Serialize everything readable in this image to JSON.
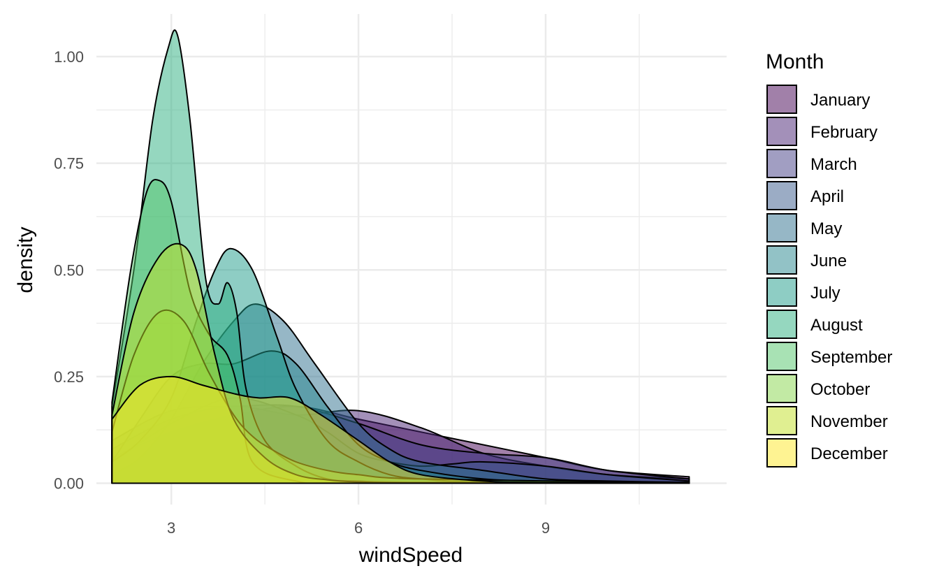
{
  "chart_data": {
    "type": "area",
    "xlabel": "windSpeed",
    "ylabel": "density",
    "xlim": [
      1.8,
      11.9
    ],
    "ylim": [
      -0.05,
      1.1
    ],
    "x_ticks": [
      3,
      6,
      9
    ],
    "x_tick_labels": [
      "3",
      "6",
      "9"
    ],
    "y_ticks": [
      0,
      0.25,
      0.5,
      0.75,
      1.0
    ],
    "y_tick_labels": [
      "0.00",
      "0.25",
      "0.50",
      "0.75",
      "1.00"
    ],
    "grid": true,
    "legend_position": "right",
    "legend_title": "Month",
    "fill_opacity": 0.5,
    "series": [
      {
        "name": "January",
        "color": "#440154",
        "x": [
          2.05,
          3,
          4,
          5,
          6,
          7,
          8,
          9,
          10,
          11.3
        ],
        "y": [
          0.06,
          0.12,
          0.16,
          0.18,
          0.15,
          0.12,
          0.09,
          0.06,
          0.03,
          0.015
        ]
      },
      {
        "name": "February",
        "color": "#482173",
        "x": [
          2.05,
          3,
          4,
          5,
          6,
          7,
          8,
          9,
          10,
          11.3
        ],
        "y": [
          0.08,
          0.15,
          0.18,
          0.16,
          0.17,
          0.13,
          0.07,
          0.04,
          0.02,
          0.01
        ]
      },
      {
        "name": "March",
        "color": "#433E85",
        "x": [
          2.05,
          3,
          4,
          5,
          6,
          7,
          8,
          9,
          10,
          11.3
        ],
        "y": [
          0.1,
          0.17,
          0.18,
          0.18,
          0.14,
          0.09,
          0.07,
          0.06,
          0.03,
          0.01
        ]
      },
      {
        "name": "April",
        "color": "#38598C",
        "x": [
          2.05,
          3,
          4,
          5,
          5.5,
          6,
          6.5,
          7,
          7.5,
          8,
          9,
          10,
          11.3
        ],
        "y": [
          0.05,
          0.14,
          0.2,
          0.16,
          0.12,
          0.07,
          0.05,
          0.04,
          0.045,
          0.05,
          0.04,
          0.02,
          0.005
        ]
      },
      {
        "name": "May",
        "color": "#2D708E",
        "x": [
          2.05,
          2.5,
          3,
          3.5,
          4,
          4.35,
          4.8,
          5.3,
          6,
          6.5,
          7,
          8,
          9,
          10,
          11.3
        ],
        "y": [
          0.02,
          0.06,
          0.15,
          0.28,
          0.38,
          0.42,
          0.38,
          0.28,
          0.14,
          0.08,
          0.05,
          0.03,
          0.01,
          0.005,
          0.002
        ]
      },
      {
        "name": "June",
        "color": "#25858E",
        "x": [
          2.05,
          2.5,
          3,
          3.5,
          4,
          4.6,
          5,
          5.5,
          6,
          6.5,
          7,
          8,
          9,
          11.3
        ],
        "y": [
          0.05,
          0.15,
          0.25,
          0.28,
          0.28,
          0.31,
          0.28,
          0.18,
          0.09,
          0.05,
          0.03,
          0.01,
          0.005,
          0.001
        ]
      },
      {
        "name": "July",
        "color": "#1E9B8A",
        "x": [
          2.05,
          2.5,
          3,
          3.4,
          3.7,
          3.95,
          4.3,
          4.7,
          5,
          5.5,
          6,
          6.5,
          7,
          8,
          11.3
        ],
        "y": [
          0.05,
          0.1,
          0.2,
          0.38,
          0.5,
          0.55,
          0.5,
          0.34,
          0.22,
          0.1,
          0.05,
          0.02,
          0.01,
          0.003,
          0.001
        ]
      },
      {
        "name": "August",
        "color": "#2BB07F",
        "x": [
          2.05,
          2.4,
          2.7,
          2.95,
          3.1,
          3.3,
          3.55,
          3.75,
          3.9,
          4.05,
          4.2,
          4.5,
          5,
          5.5,
          6,
          7,
          11.3
        ],
        "y": [
          0.18,
          0.5,
          0.85,
          1.02,
          1.05,
          0.85,
          0.48,
          0.42,
          0.47,
          0.4,
          0.22,
          0.1,
          0.04,
          0.01,
          0.005,
          0.002,
          0.001
        ]
      },
      {
        "name": "September",
        "color": "#51C56A",
        "x": [
          2.05,
          2.35,
          2.6,
          2.8,
          3.0,
          3.3,
          3.6,
          3.9,
          4.1,
          4.3,
          5,
          6,
          11.3
        ],
        "y": [
          0.19,
          0.5,
          0.68,
          0.71,
          0.66,
          0.45,
          0.35,
          0.3,
          0.2,
          0.05,
          0.005,
          0.001,
          0.001
        ]
      },
      {
        "name": "October",
        "color": "#85D54A",
        "x": [
          2.05,
          2.4,
          2.8,
          3.2,
          3.6,
          4.0,
          4.3,
          4.6,
          5,
          5.5,
          6,
          7,
          11.3
        ],
        "y": [
          0.12,
          0.3,
          0.4,
          0.38,
          0.26,
          0.16,
          0.11,
          0.08,
          0.05,
          0.03,
          0.02,
          0.01,
          0.001
        ]
      },
      {
        "name": "November",
        "color": "#C2DF23",
        "x": [
          2.05,
          2.4,
          2.8,
          3.15,
          3.4,
          3.7,
          4,
          4.5,
          5,
          5.5,
          6,
          7,
          11.3
        ],
        "y": [
          0.16,
          0.4,
          0.53,
          0.56,
          0.5,
          0.3,
          0.15,
          0.06,
          0.02,
          0.008,
          0.003,
          0.001,
          0.001
        ]
      },
      {
        "name": "December",
        "color": "#FDE725",
        "x": [
          2.05,
          2.5,
          3,
          3.5,
          4,
          4.4,
          4.9,
          5.4,
          6,
          6.5,
          7,
          8,
          9,
          11.3
        ],
        "y": [
          0.15,
          0.23,
          0.25,
          0.23,
          0.21,
          0.2,
          0.2,
          0.16,
          0.1,
          0.05,
          0.02,
          0.005,
          0.001,
          0.001
        ]
      }
    ]
  }
}
